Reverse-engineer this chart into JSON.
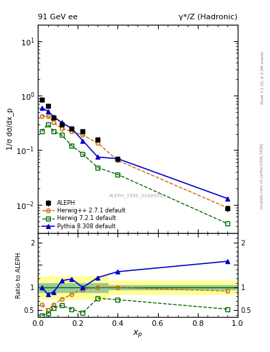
{
  "title_left": "91 GeV ee",
  "title_right": "γ*/Z (Hadronic)",
  "ylabel_main": "1/σ dσ/dx_p",
  "ylabel_ratio": "Ratio to ALEPH",
  "xlabel": "x_p",
  "right_label_top": "Rivet 3.1.10, ≥ 2.5M events",
  "right_label_bottom": "mcplots.cern.ch [arXiv:1306.3436]",
  "watermark": "ALEPH_1996_S3486095",
  "aleph_x": [
    0.02,
    0.05,
    0.08,
    0.12,
    0.17,
    0.225,
    0.3,
    0.4,
    0.95
  ],
  "aleph_y": [
    0.85,
    0.65,
    0.4,
    0.3,
    0.25,
    0.22,
    0.155,
    0.07,
    0.0085
  ],
  "aleph_yerr": [
    0.05,
    0.03,
    0.02,
    0.015,
    0.01,
    0.01,
    0.008,
    0.004,
    0.001
  ],
  "herwig_x": [
    0.02,
    0.05,
    0.08,
    0.12,
    0.17,
    0.225,
    0.3,
    0.4,
    0.95
  ],
  "herwig_y": [
    0.42,
    0.42,
    0.32,
    0.25,
    0.22,
    0.19,
    0.135,
    0.065,
    0.0088
  ],
  "herwig72_x": [
    0.02,
    0.05,
    0.08,
    0.12,
    0.17,
    0.225,
    0.3,
    0.4,
    0.95
  ],
  "herwig72_y": [
    0.22,
    0.3,
    0.22,
    0.19,
    0.12,
    0.085,
    0.048,
    0.036,
    0.0045
  ],
  "pythia_x": [
    0.02,
    0.05,
    0.08,
    0.12,
    0.17,
    0.225,
    0.3,
    0.4,
    0.95
  ],
  "pythia_y": [
    0.6,
    0.52,
    0.41,
    0.32,
    0.25,
    0.15,
    0.075,
    0.07,
    0.013
  ],
  "ratio_herwig_x": [
    0.02,
    0.05,
    0.08,
    0.12,
    0.17,
    0.225,
    0.3,
    0.4,
    0.95
  ],
  "ratio_herwig_y": [
    0.62,
    0.5,
    0.62,
    0.74,
    0.85,
    0.96,
    1.0,
    1.0,
    0.92
  ],
  "ratio_herwig72_x": [
    0.02,
    0.05,
    0.08,
    0.12,
    0.17,
    0.225,
    0.3,
    0.4,
    0.95
  ],
  "ratio_herwig72_y": [
    0.38,
    0.42,
    0.55,
    0.6,
    0.52,
    0.44,
    0.76,
    0.73,
    0.52
  ],
  "ratio_pythia_x": [
    0.02,
    0.05,
    0.08,
    0.12,
    0.17,
    0.225,
    0.3,
    0.4,
    0.95
  ],
  "ratio_pythia_y": [
    1.0,
    0.85,
    0.9,
    1.15,
    1.19,
    1.0,
    1.22,
    1.35,
    1.58
  ],
  "color_aleph": "#000000",
  "color_herwig": "#cc6600",
  "color_herwig72": "#006600",
  "color_pythia": "#0000cc",
  "color_yellow": "#ffff99",
  "color_green": "#99cc99",
  "ylim_main": [
    0.003,
    20
  ],
  "ylim_ratio": [
    0.35,
    2.2
  ],
  "xlim": [
    0.0,
    1.0
  ]
}
